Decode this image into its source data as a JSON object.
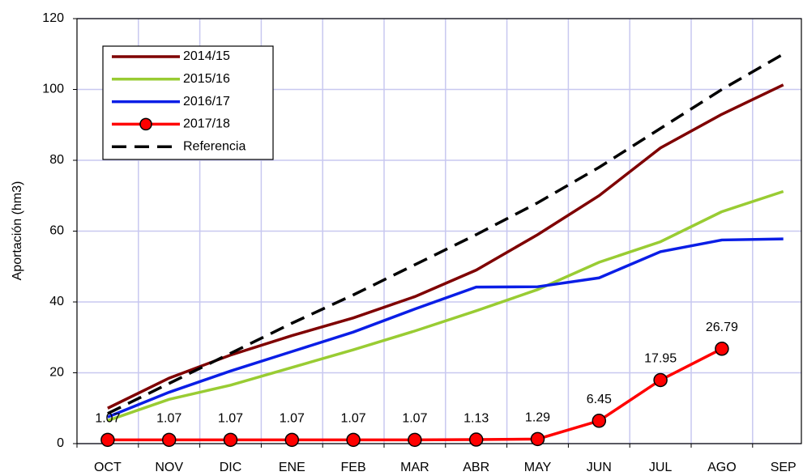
{
  "chart_data": {
    "type": "line",
    "y_label": "Aportación (hm3)",
    "categories": [
      "OCT",
      "NOV",
      "DIC",
      "ENE",
      "FEB",
      "MAR",
      "ABR",
      "MAY",
      "JUN",
      "JUL",
      "AGO",
      "SEP"
    ],
    "series": [
      {
        "name": "2014/15",
        "color": "#7f0000",
        "values": [
          10,
          18.5,
          25,
          30.5,
          35.5,
          41.5,
          49,
          59,
          70,
          83.5,
          93,
          101.3
        ]
      },
      {
        "name": "2015/16",
        "color": "#99cc33",
        "values": [
          6.5,
          12.5,
          16.5,
          21.5,
          26.5,
          31.8,
          37.5,
          43.5,
          51.2,
          57,
          65.5,
          71.2
        ]
      },
      {
        "name": "2016/17",
        "color": "#0a1ee6",
        "values": [
          7.5,
          14.5,
          20.5,
          26,
          31.5,
          38,
          44.2,
          44.3,
          46.8,
          54.2,
          57.5,
          57.8
        ]
      },
      {
        "name": "2017/18",
        "color": "#ff0000",
        "marker": true,
        "data_labels": true,
        "values": [
          1.07,
          1.07,
          1.07,
          1.07,
          1.07,
          1.07,
          1.13,
          1.29,
          6.45,
          17.95,
          26.79,
          null
        ]
      },
      {
        "name": "Referencia",
        "color": "#000000",
        "dashed": true,
        "values": [
          8.5,
          17,
          25.5,
          34,
          42,
          50.5,
          59,
          68,
          78,
          89,
          100,
          110
        ]
      }
    ],
    "ylim": [
      0,
      120
    ],
    "yticks": [
      0,
      20,
      40,
      60,
      80,
      100,
      120
    ],
    "grid": true,
    "grid_color": "#c8c8f0",
    "legend": "upper left"
  }
}
